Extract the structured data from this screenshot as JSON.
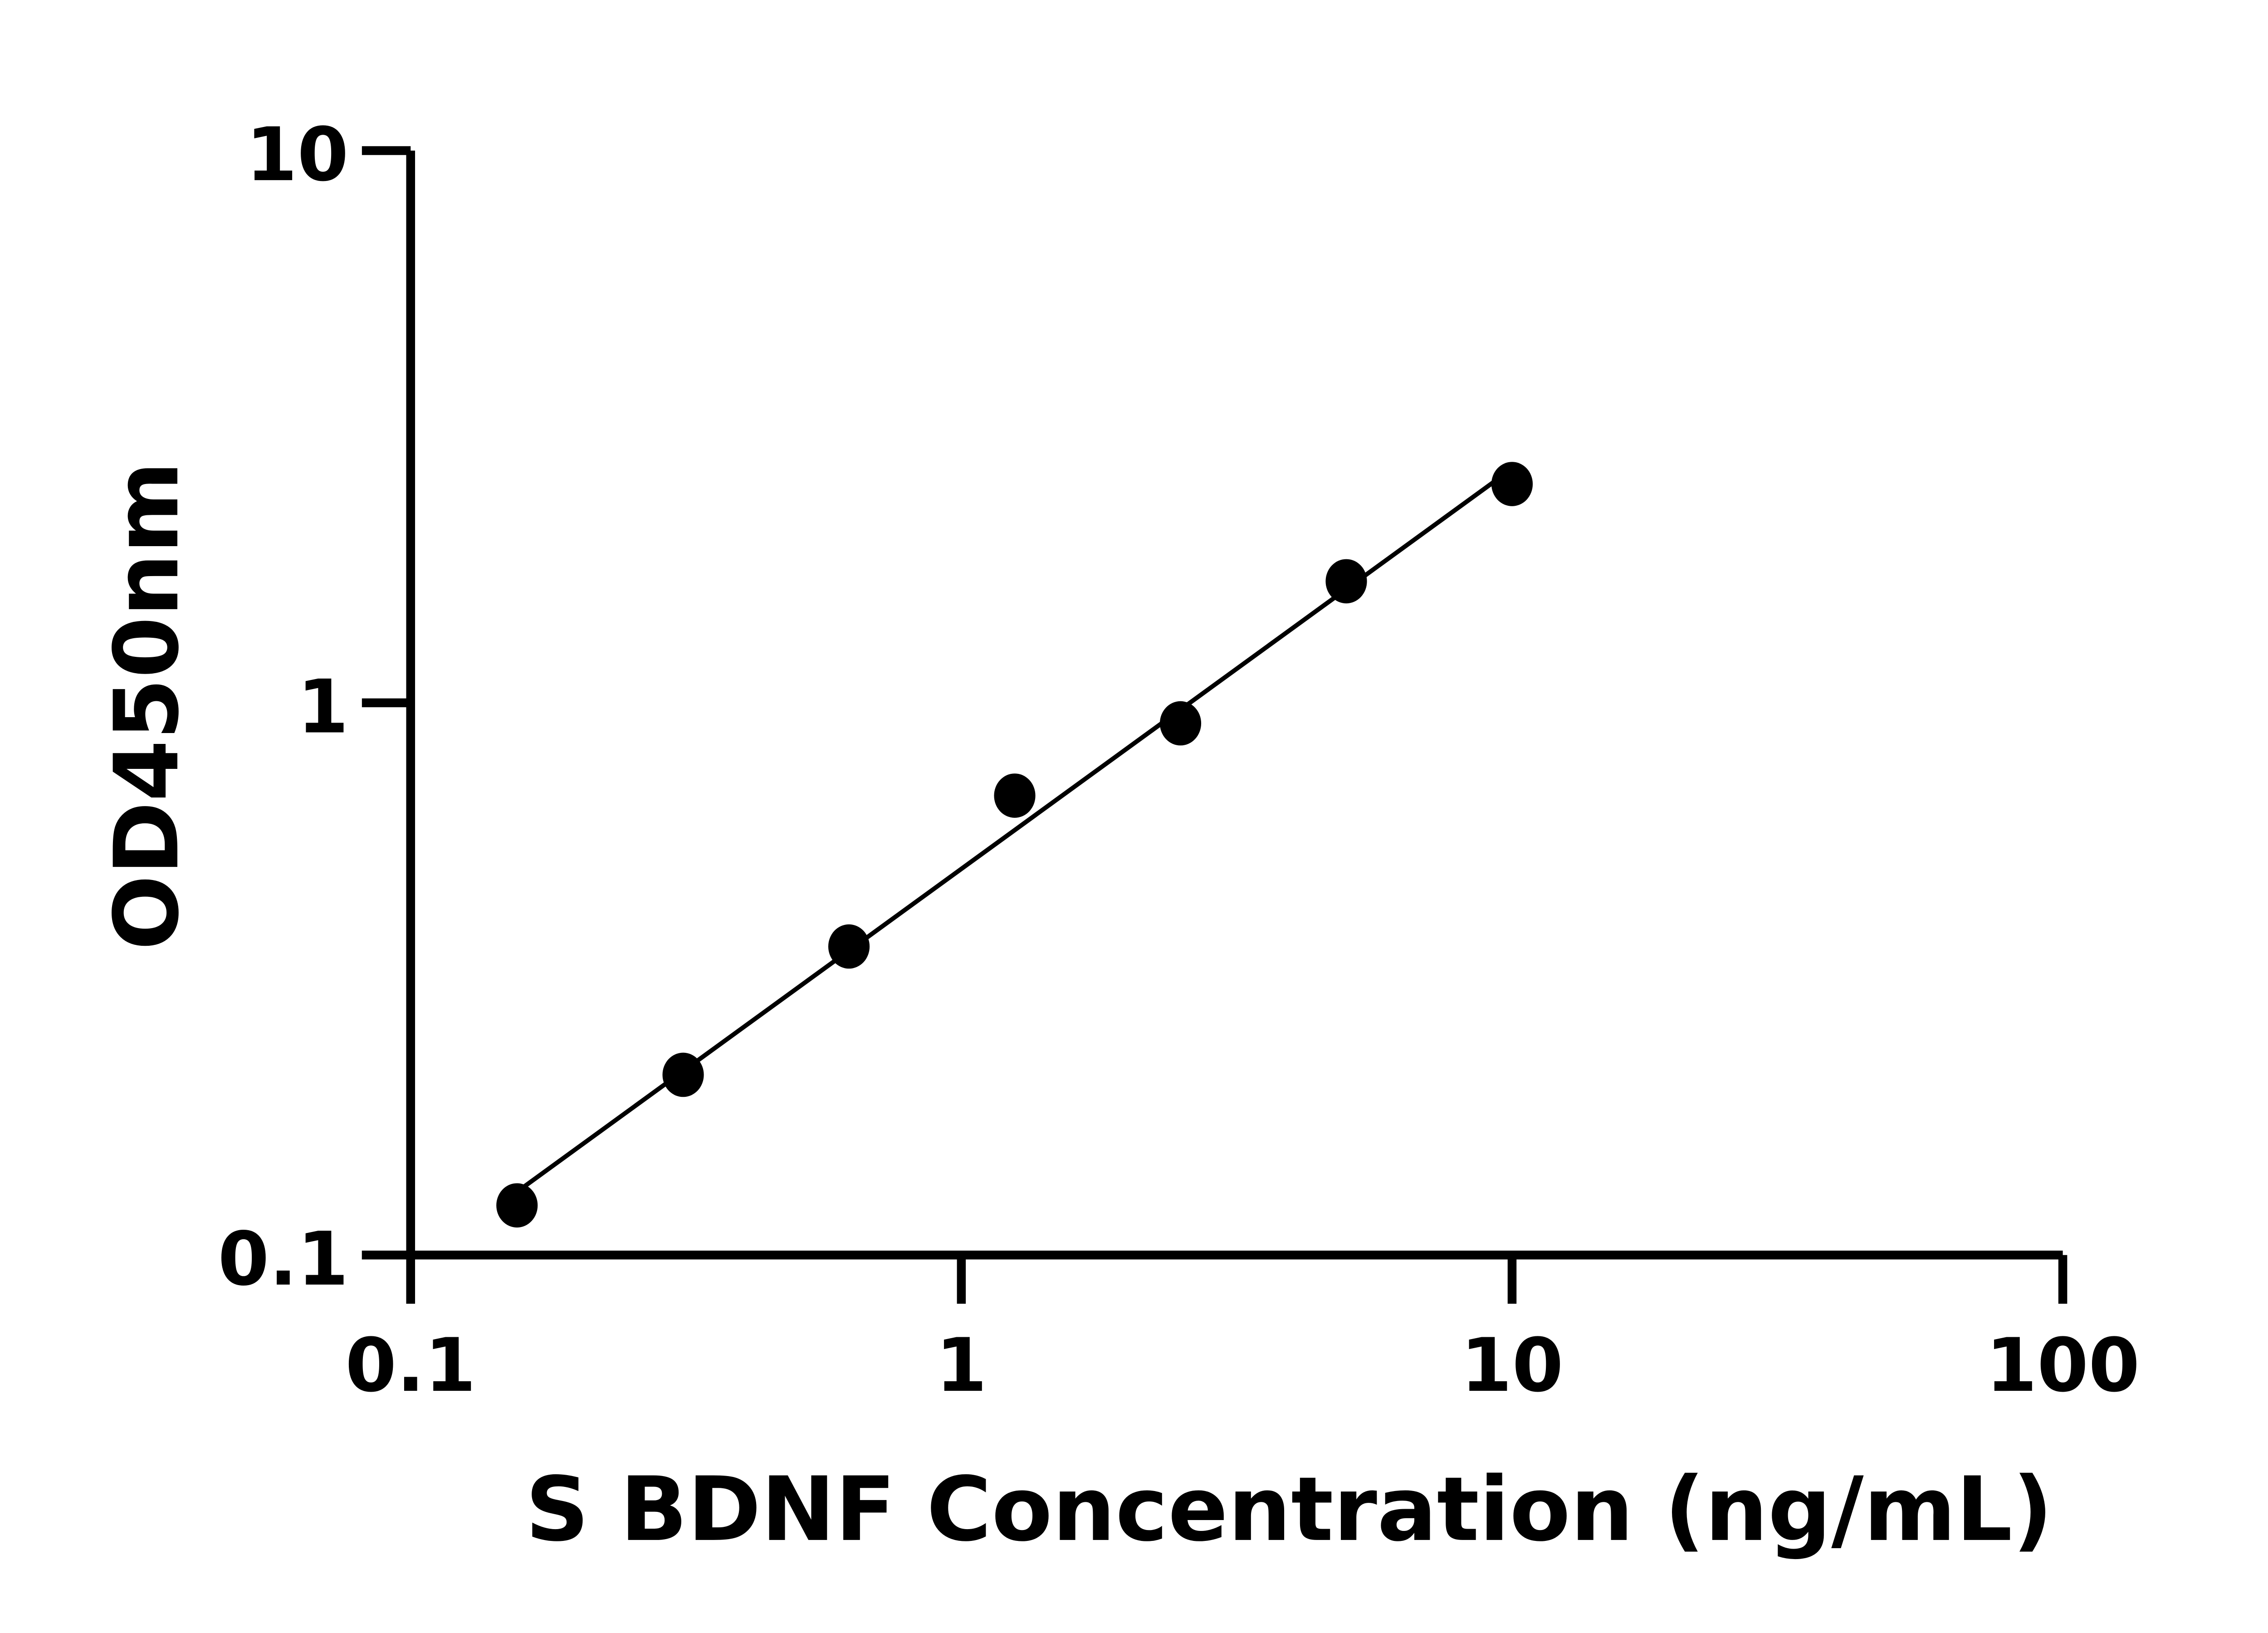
{
  "chart_data": {
    "type": "scatter",
    "title": "",
    "xlabel": "S BDNF Concentration (ng/mL)",
    "ylabel": "OD450nm",
    "x_scale": "log",
    "y_scale": "log",
    "xlim": [
      0.1,
      100
    ],
    "ylim": [
      0.1,
      10
    ],
    "x_ticks": [
      "0.1",
      "1",
      "10",
      "100"
    ],
    "y_ticks": [
      "0.1",
      "1",
      "10"
    ],
    "grid": false,
    "fit_line": true,
    "color": "#000000",
    "series": [
      {
        "x": [
          0.156,
          0.3125,
          0.625,
          1.25,
          2.5,
          5,
          10
        ],
        "y": [
          0.123,
          0.212,
          0.362,
          0.679,
          0.918,
          1.66,
          2.49
        ]
      }
    ]
  }
}
